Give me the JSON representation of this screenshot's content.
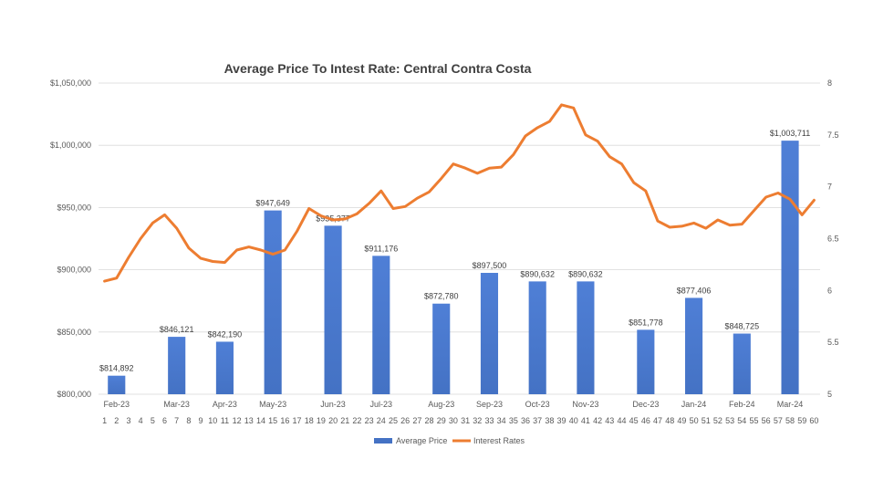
{
  "chart_data": {
    "type": "bar",
    "title": "Average Price To Intest Rate: Central Contra Costa",
    "months": [
      "Feb-23",
      "Mar-23",
      "Apr-23",
      "May-23",
      "Jun-23",
      "Jul-23",
      "Aug-23",
      "Sep-23",
      "Oct-23",
      "Nov-23",
      "Dec-23",
      "Jan-24",
      "Feb-24",
      "Mar-24"
    ],
    "x_ticks": [
      1,
      2,
      3,
      4,
      5,
      6,
      7,
      8,
      9,
      10,
      11,
      12,
      13,
      14,
      15,
      16,
      17,
      18,
      19,
      20,
      21,
      22,
      23,
      24,
      25,
      26,
      27,
      28,
      29,
      30,
      31,
      32,
      33,
      34,
      35,
      36,
      37,
      38,
      39,
      40,
      41,
      42,
      43,
      44,
      45,
      46,
      47,
      48,
      49,
      50,
      51,
      52,
      53,
      54,
      55,
      56,
      57,
      58,
      59,
      60
    ],
    "left_axis": {
      "ylim": [
        800000,
        1050000
      ],
      "ticks": [
        "$800,000",
        "$850,000",
        "$900,000",
        "$950,000",
        "$1,000,000",
        "$1,050,000"
      ]
    },
    "right_axis": {
      "ylim": [
        5,
        8
      ],
      "ticks": [
        "5",
        "5.5",
        "6",
        "6.5",
        "7",
        "7.5",
        "8"
      ]
    },
    "series": [
      {
        "name": "Average Price",
        "kind": "bar",
        "color": "#4472C4",
        "x": [
          2,
          7,
          11,
          15,
          20,
          24,
          29,
          33,
          37,
          41,
          46,
          50,
          54,
          58
        ],
        "values": [
          814892,
          846121,
          842190,
          947649,
          935377,
          911176,
          872780,
          897500,
          890632,
          890632,
          851778,
          877406,
          848725,
          1003711
        ],
        "labels": [
          "$814,892",
          "$846,121",
          "$842,190",
          "$947,649",
          "$935,377",
          "$911,176",
          "$872,780",
          "$897,500",
          "$890,632",
          "$890,632",
          "$851,778",
          "$877,406",
          "$848,725",
          "$1,003,711"
        ]
      },
      {
        "name": "Interest Rates",
        "kind": "line",
        "color": "#ED7D31",
        "x": [
          1,
          2,
          3,
          4,
          5,
          6,
          7,
          8,
          9,
          10,
          11,
          12,
          13,
          14,
          15,
          16,
          17,
          18,
          19,
          20,
          21,
          22,
          23,
          24,
          25,
          26,
          27,
          28,
          29,
          30,
          31,
          32,
          33,
          34,
          35,
          36,
          37,
          38,
          39,
          40,
          41,
          42,
          43,
          44,
          45,
          46,
          47,
          48,
          49,
          50,
          51,
          52,
          53,
          54,
          55,
          56,
          57,
          58,
          59,
          60
        ],
        "values": [
          6.09,
          6.12,
          6.32,
          6.5,
          6.65,
          6.73,
          6.6,
          6.41,
          6.31,
          6.28,
          6.27,
          6.39,
          6.42,
          6.39,
          6.35,
          6.39,
          6.57,
          6.79,
          6.72,
          6.68,
          6.69,
          6.74,
          6.84,
          6.96,
          6.79,
          6.81,
          6.89,
          6.95,
          7.08,
          7.22,
          7.18,
          7.13,
          7.18,
          7.19,
          7.31,
          7.49,
          7.57,
          7.63,
          7.79,
          7.76,
          7.5,
          7.44,
          7.29,
          7.22,
          7.04,
          6.96,
          6.67,
          6.61,
          6.62,
          6.65,
          6.6,
          6.68,
          6.63,
          6.64,
          6.77,
          6.9,
          6.94,
          6.88,
          6.73,
          6.87
        ]
      }
    ],
    "legend": {
      "position": "bottom",
      "entries": [
        "Average Price",
        "Interest Rates"
      ]
    },
    "grid": true
  }
}
